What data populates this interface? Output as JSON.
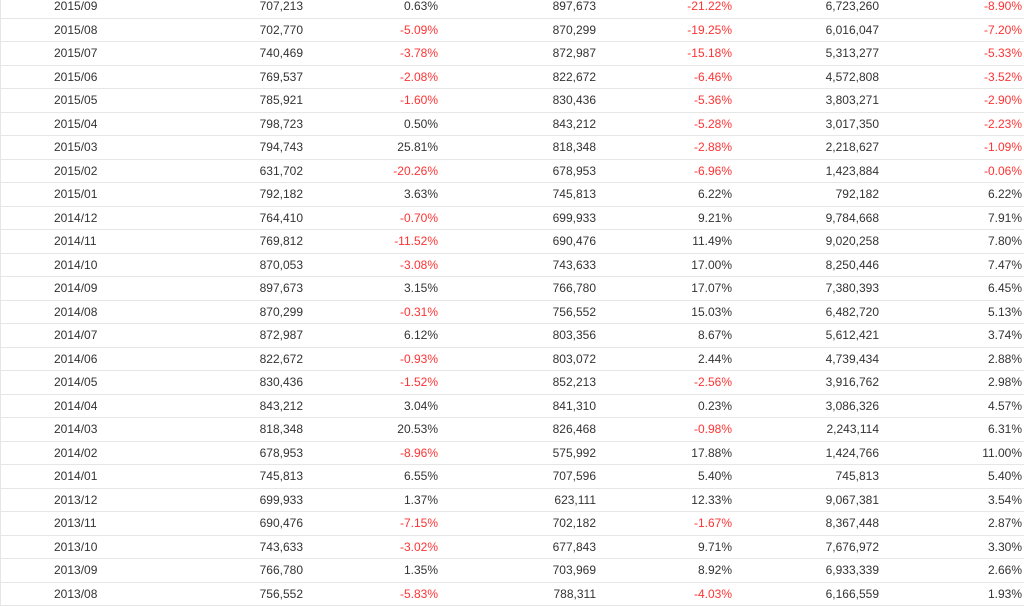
{
  "colors": {
    "text": "#333333",
    "negative": "#ff3333",
    "border": "#e6e6e6"
  },
  "rows": [
    [
      "2015/09",
      "707,213",
      "0.63%",
      "897,673",
      "-21.22%",
      "6,723,260",
      "-8.90%"
    ],
    [
      "2015/08",
      "702,770",
      "-5.09%",
      "870,299",
      "-19.25%",
      "6,016,047",
      "-7.20%"
    ],
    [
      "2015/07",
      "740,469",
      "-3.78%",
      "872,987",
      "-15.18%",
      "5,313,277",
      "-5.33%"
    ],
    [
      "2015/06",
      "769,537",
      "-2.08%",
      "822,672",
      "-6.46%",
      "4,572,808",
      "-3.52%"
    ],
    [
      "2015/05",
      "785,921",
      "-1.60%",
      "830,436",
      "-5.36%",
      "3,803,271",
      "-2.90%"
    ],
    [
      "2015/04",
      "798,723",
      "0.50%",
      "843,212",
      "-5.28%",
      "3,017,350",
      "-2.23%"
    ],
    [
      "2015/03",
      "794,743",
      "25.81%",
      "818,348",
      "-2.88%",
      "2,218,627",
      "-1.09%"
    ],
    [
      "2015/02",
      "631,702",
      "-20.26%",
      "678,953",
      "-6.96%",
      "1,423,884",
      "-0.06%"
    ],
    [
      "2015/01",
      "792,182",
      "3.63%",
      "745,813",
      "6.22%",
      "792,182",
      "6.22%"
    ],
    [
      "2014/12",
      "764,410",
      "-0.70%",
      "699,933",
      "9.21%",
      "9,784,668",
      "7.91%"
    ],
    [
      "2014/11",
      "769,812",
      "-11.52%",
      "690,476",
      "11.49%",
      "9,020,258",
      "7.80%"
    ],
    [
      "2014/10",
      "870,053",
      "-3.08%",
      "743,633",
      "17.00%",
      "8,250,446",
      "7.47%"
    ],
    [
      "2014/09",
      "897,673",
      "3.15%",
      "766,780",
      "17.07%",
      "7,380,393",
      "6.45%"
    ],
    [
      "2014/08",
      "870,299",
      "-0.31%",
      "756,552",
      "15.03%",
      "6,482,720",
      "5.13%"
    ],
    [
      "2014/07",
      "872,987",
      "6.12%",
      "803,356",
      "8.67%",
      "5,612,421",
      "3.74%"
    ],
    [
      "2014/06",
      "822,672",
      "-0.93%",
      "803,072",
      "2.44%",
      "4,739,434",
      "2.88%"
    ],
    [
      "2014/05",
      "830,436",
      "-1.52%",
      "852,213",
      "-2.56%",
      "3,916,762",
      "2.98%"
    ],
    [
      "2014/04",
      "843,212",
      "3.04%",
      "841,310",
      "0.23%",
      "3,086,326",
      "4.57%"
    ],
    [
      "2014/03",
      "818,348",
      "20.53%",
      "826,468",
      "-0.98%",
      "2,243,114",
      "6.31%"
    ],
    [
      "2014/02",
      "678,953",
      "-8.96%",
      "575,992",
      "17.88%",
      "1,424,766",
      "11.00%"
    ],
    [
      "2014/01",
      "745,813",
      "6.55%",
      "707,596",
      "5.40%",
      "745,813",
      "5.40%"
    ],
    [
      "2013/12",
      "699,933",
      "1.37%",
      "623,111",
      "12.33%",
      "9,067,381",
      "3.54%"
    ],
    [
      "2013/11",
      "690,476",
      "-7.15%",
      "702,182",
      "-1.67%",
      "8,367,448",
      "2.87%"
    ],
    [
      "2013/10",
      "743,633",
      "-3.02%",
      "677,843",
      "9.71%",
      "7,676,972",
      "3.30%"
    ],
    [
      "2013/09",
      "766,780",
      "1.35%",
      "703,969",
      "8.92%",
      "6,933,339",
      "2.66%"
    ],
    [
      "2013/08",
      "756,552",
      "-5.83%",
      "788,311",
      "-4.03%",
      "6,166,559",
      "1.93%"
    ]
  ]
}
